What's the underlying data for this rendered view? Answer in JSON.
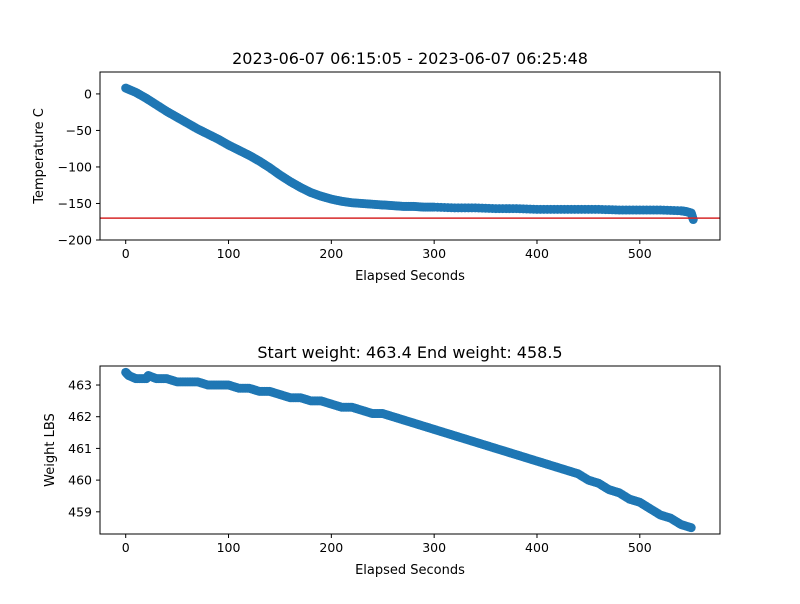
{
  "chart_data": [
    {
      "type": "scatter",
      "title": "2023-06-07 06:15:05 - 2023-06-07 06:25:48",
      "xlabel": "Elapsed Seconds",
      "ylabel": "Temperature C",
      "xlim": [
        -25,
        578
      ],
      "ylim": [
        -200,
        30
      ],
      "xticks": [
        0,
        100,
        200,
        300,
        400,
        500
      ],
      "yticks": [
        0,
        -50,
        -100,
        -150,
        -200
      ],
      "marker_color": "#1f77b4",
      "reference_line": {
        "y": -170,
        "color": "#d62728"
      },
      "series": [
        {
          "x": [
            0,
            10,
            20,
            30,
            40,
            50,
            60,
            70,
            80,
            90,
            100,
            110,
            120,
            130,
            140,
            150,
            160,
            170,
            180,
            190,
            200,
            210,
            220,
            230,
            240,
            250,
            260,
            270,
            280,
            290,
            300,
            320,
            340,
            360,
            380,
            400,
            420,
            440,
            460,
            480,
            500,
            520,
            540,
            545,
            550,
            552
          ],
          "y": [
            8,
            2,
            -6,
            -15,
            -24,
            -32,
            -40,
            -48,
            -55,
            -62,
            -70,
            -77,
            -84,
            -92,
            -101,
            -111,
            -120,
            -128,
            -135,
            -140,
            -144,
            -147,
            -149,
            -150,
            -151,
            -152,
            -153,
            -154,
            -154,
            -155,
            -155,
            -156,
            -156,
            -157,
            -157,
            -158,
            -158,
            -158,
            -158,
            -159,
            -159,
            -159,
            -160,
            -161,
            -163,
            -172
          ]
        }
      ]
    },
    {
      "type": "scatter",
      "title": "Start weight: 463.4 End weight: 458.5",
      "xlabel": "Elapsed Seconds",
      "ylabel": "Weight LBS",
      "xlim": [
        -25,
        578
      ],
      "ylim": [
        458.3,
        463.6
      ],
      "xticks": [
        0,
        100,
        200,
        300,
        400,
        500
      ],
      "yticks": [
        463,
        462,
        461,
        460,
        459
      ],
      "marker_color": "#1f77b4",
      "series": [
        {
          "x": [
            0,
            3,
            10,
            20,
            22,
            30,
            40,
            50,
            60,
            70,
            80,
            90,
            100,
            110,
            120,
            130,
            140,
            150,
            160,
            170,
            180,
            190,
            200,
            210,
            220,
            230,
            240,
            250,
            260,
            270,
            280,
            290,
            300,
            310,
            320,
            330,
            340,
            350,
            360,
            370,
            380,
            390,
            400,
            410,
            420,
            430,
            440,
            450,
            460,
            470,
            480,
            490,
            500,
            510,
            520,
            530,
            540,
            550
          ],
          "y": [
            463.4,
            463.3,
            463.2,
            463.2,
            463.3,
            463.2,
            463.2,
            463.1,
            463.1,
            463.1,
            463.0,
            463.0,
            463.0,
            462.9,
            462.9,
            462.8,
            462.8,
            462.7,
            462.6,
            462.6,
            462.5,
            462.5,
            462.4,
            462.3,
            462.3,
            462.2,
            462.1,
            462.1,
            462.0,
            461.9,
            461.8,
            461.7,
            461.6,
            461.5,
            461.4,
            461.3,
            461.2,
            461.1,
            461.0,
            460.9,
            460.8,
            460.7,
            460.6,
            460.5,
            460.4,
            460.3,
            460.2,
            460.0,
            459.9,
            459.7,
            459.6,
            459.4,
            459.3,
            459.1,
            458.9,
            458.8,
            458.6,
            458.5
          ]
        }
      ]
    }
  ]
}
